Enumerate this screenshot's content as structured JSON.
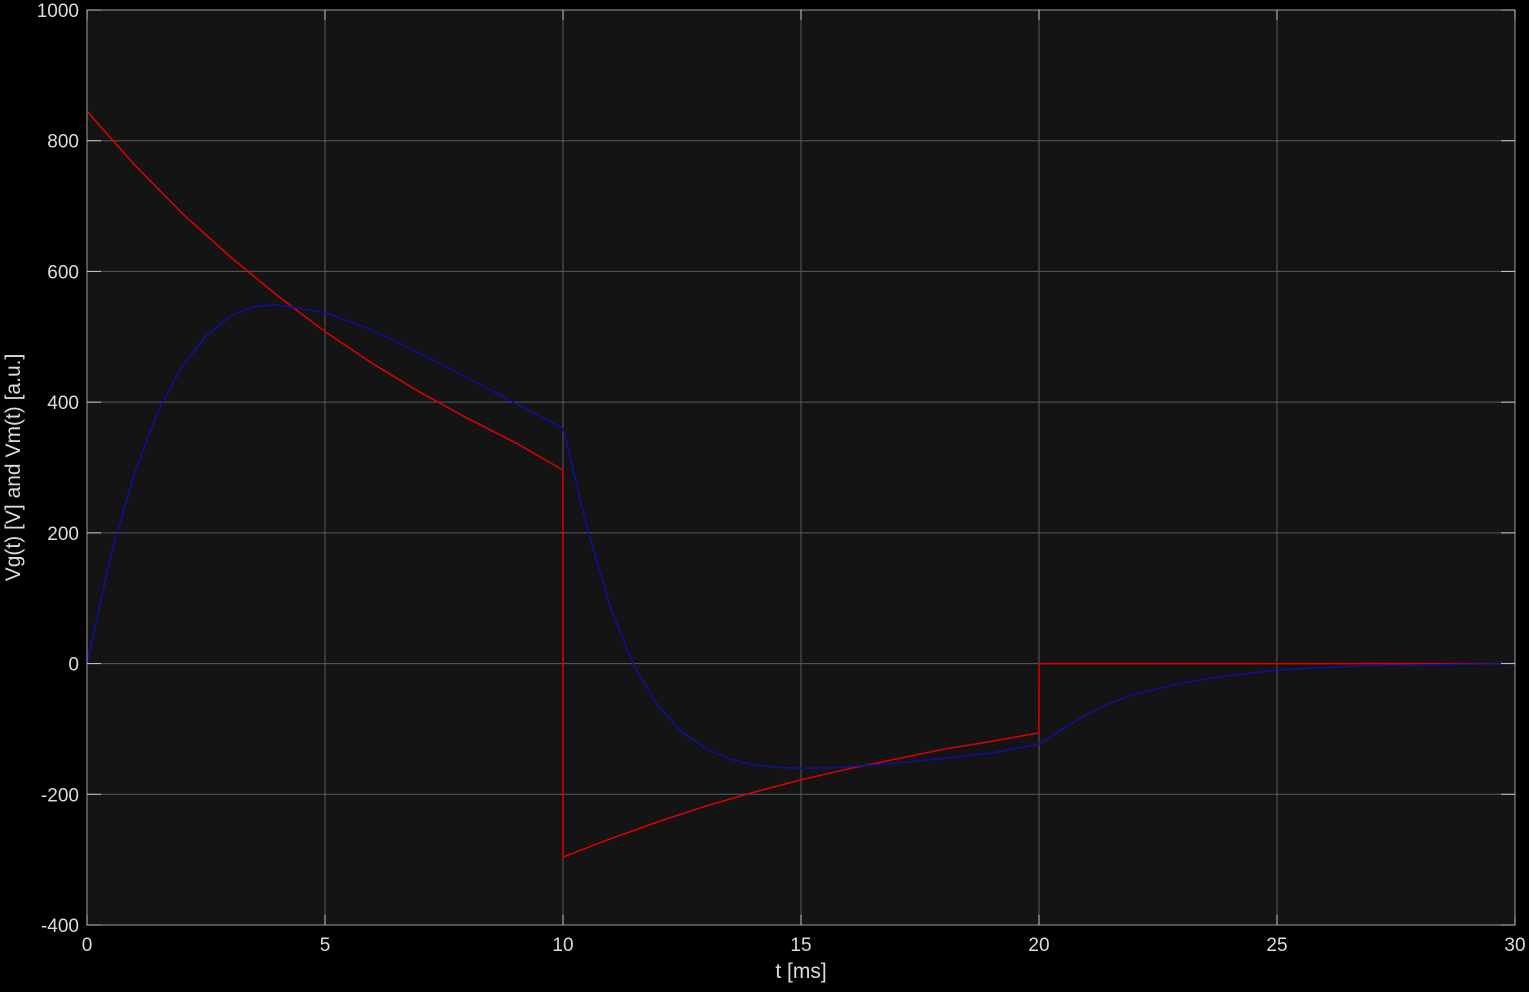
{
  "chart_data": {
    "type": "line",
    "title": "",
    "xlabel": "t [ms]",
    "ylabel": "Vg(t) [V] and Vm(t) [a.u.]",
    "xlim": [
      0,
      30
    ],
    "ylim": [
      -400,
      1000
    ],
    "x_ticks": [
      "0",
      "5",
      "10",
      "15",
      "20",
      "25",
      "30"
    ],
    "y_ticks": [
      "1000",
      "800",
      "600",
      "400",
      "200",
      "0",
      "-200",
      "-400"
    ],
    "grid": true,
    "legend": "none",
    "colors": {
      "figure_background": "#000000",
      "axes_background": "#141414",
      "grid": "#5a5a5a",
      "axis_text": "#dcdcdc",
      "series_red": "#e00000",
      "series_blue": "#1010a0"
    },
    "series": [
      {
        "color": "#e00000",
        "x": [
          0,
          1,
          2,
          3,
          4,
          5,
          6,
          7,
          8,
          9,
          9.999,
          10,
          10.001,
          11,
          12,
          13,
          14,
          15,
          16,
          17,
          18,
          19,
          19.999,
          20,
          20.001,
          22,
          25,
          28,
          30
        ],
        "y": [
          845,
          763,
          689,
          623,
          563,
          508,
          459,
          415,
          375,
          338,
          296,
          0,
          -296,
          -268,
          -242,
          -218,
          -197,
          -178,
          -161,
          -146,
          -131,
          -119,
          -106,
          0,
          0,
          0,
          0,
          0,
          0
        ]
      },
      {
        "color": "#1010a0",
        "x": [
          0,
          0.5,
          1,
          1.5,
          2,
          2.5,
          3,
          3.5,
          4,
          5,
          6,
          7,
          8,
          9,
          10,
          10.5,
          11,
          11.5,
          12,
          12.5,
          13,
          13.5,
          14,
          14.5,
          15,
          15.5,
          16,
          17,
          18,
          19,
          20,
          20.5,
          21,
          21.5,
          22,
          23,
          24,
          25,
          26,
          27,
          28,
          29,
          30
        ],
        "y": [
          0,
          165,
          292,
          387,
          455,
          501,
          531,
          546,
          549,
          537,
          510,
          474,
          437,
          398,
          360,
          210,
          85,
          -5,
          -65,
          -105,
          -130,
          -146,
          -155,
          -159,
          -160,
          -160,
          -158,
          -152,
          -145,
          -137,
          -123,
          -100,
          -78,
          -60,
          -47,
          -30,
          -18,
          -10,
          -6,
          -3,
          -2,
          -1,
          0
        ]
      }
    ]
  }
}
